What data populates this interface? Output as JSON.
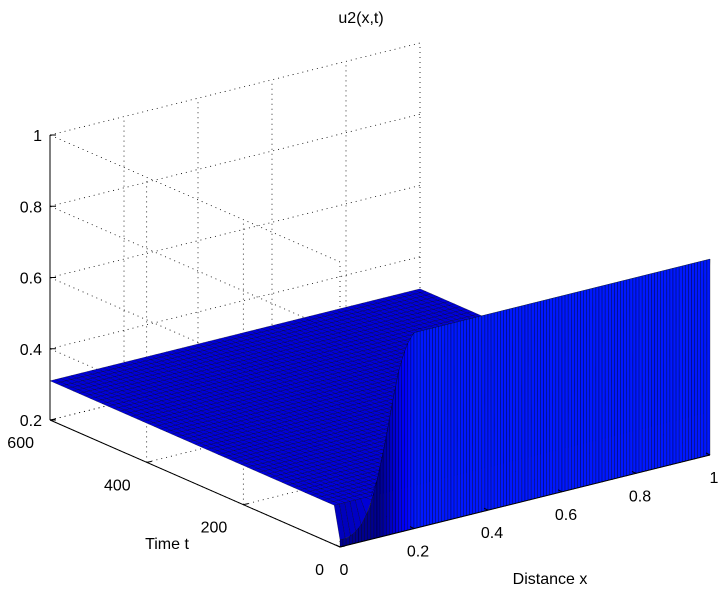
{
  "chart_data": {
    "type": "surface",
    "title": "u2(x,t)",
    "xlabel": "Distance x",
    "ylabel": "Time t",
    "zlabel": "",
    "xlim": [
      0,
      1
    ],
    "ylim": [
      0,
      600
    ],
    "zlim": [
      0.2,
      1
    ],
    "x_ticks": [
      "0",
      "0.2",
      "0.4",
      "0.6",
      "0.8",
      "1"
    ],
    "y_ticks": [
      "0",
      "200",
      "400",
      "600"
    ],
    "z_ticks": [
      "0.2",
      "0.4",
      "0.6",
      "0.8",
      "1"
    ],
    "grid": true,
    "colormap": [
      "#00008f",
      "#0000ff",
      "#00ffff",
      "#ffff00",
      "#ff0000",
      "#800000"
    ],
    "surface": {
      "t_range": [
        0,
        600
      ],
      "profile_x": [
        0,
        0.02,
        0.04,
        0.06,
        0.08,
        0.1,
        0.12,
        0.14,
        0.16,
        0.18,
        0.2,
        0.3,
        0.4,
        0.5,
        0.6,
        0.7,
        0.8,
        0.9,
        1
      ],
      "u_at_t0": [
        0.22,
        0.22,
        0.23,
        0.25,
        0.29,
        0.36,
        0.45,
        0.56,
        0.66,
        0.72,
        0.75,
        0.75,
        0.75,
        0.75,
        0.75,
        0.75,
        0.75,
        0.75,
        0.75
      ],
      "u_late_t": 0.31
    }
  }
}
